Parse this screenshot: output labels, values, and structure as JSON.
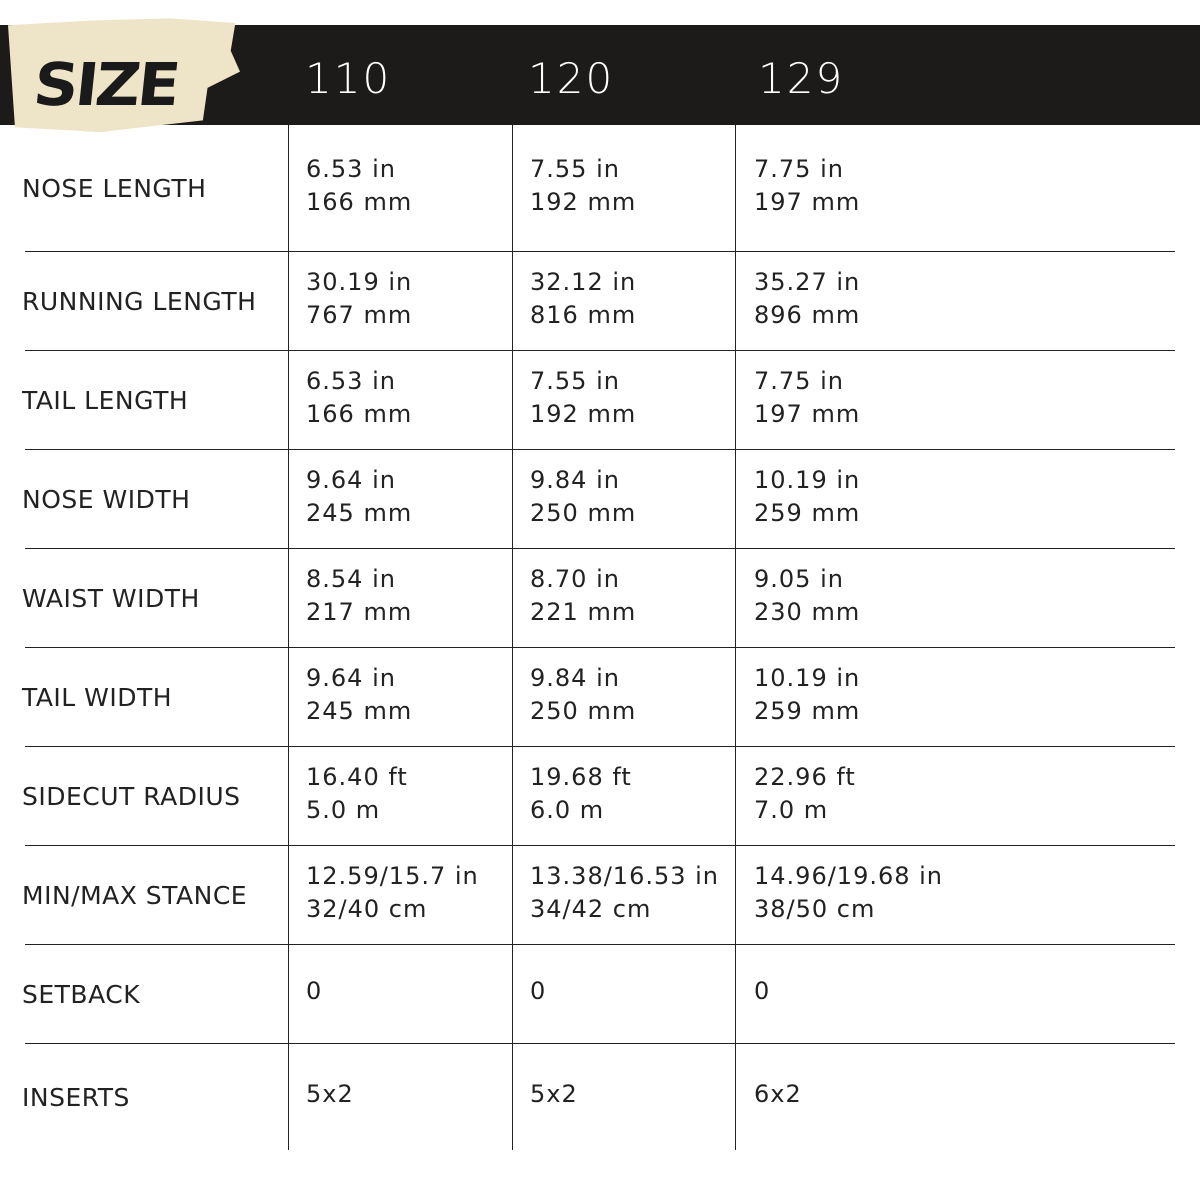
{
  "header": {
    "logo_text": "SIZE",
    "sizes": [
      "110",
      "120",
      "129"
    ]
  },
  "rows": [
    {
      "label": "NOSE LENGTH",
      "values": [
        [
          "6.53 in",
          "166 mm"
        ],
        [
          "7.55 in",
          "192 mm"
        ],
        [
          "7.75 in",
          "197  mm"
        ]
      ]
    },
    {
      "label": "RUNNING LENGTH",
      "values": [
        [
          "30.19 in",
          "767 mm"
        ],
        [
          "32.12 in",
          "816 mm"
        ],
        [
          "35.27 in",
          "896 mm"
        ]
      ]
    },
    {
      "label": "TAIL LENGTH",
      "values": [
        [
          "6.53 in",
          "166 mm"
        ],
        [
          "7.55 in",
          "192 mm"
        ],
        [
          "7.75 in",
          "197 mm"
        ]
      ]
    },
    {
      "label": "NOSE WIDTH",
      "values": [
        [
          "9.64 in",
          "245 mm"
        ],
        [
          "9.84 in",
          "250 mm"
        ],
        [
          "10.19 in",
          "259 mm"
        ]
      ]
    },
    {
      "label": "WAIST WIDTH",
      "values": [
        [
          "8.54 in",
          "217 mm"
        ],
        [
          "8.70 in",
          "221 mm"
        ],
        [
          "9.05 in",
          "230 mm"
        ]
      ]
    },
    {
      "label": "TAIL WIDTH",
      "values": [
        [
          "9.64 in",
          "245 mm"
        ],
        [
          "9.84 in",
          "250 mm"
        ],
        [
          "10.19 in",
          "259 mm"
        ]
      ]
    },
    {
      "label": "SIDECUT RADIUS",
      "values": [
        [
          "16.40 ft",
          "5.0 m"
        ],
        [
          "19.68 ft",
          "6.0 m"
        ],
        [
          "22.96 ft",
          "7.0 m"
        ]
      ]
    },
    {
      "label": "MIN/MAX STANCE",
      "values": [
        [
          "12.59/15.7 in",
          "32/40 cm"
        ],
        [
          "13.38/16.53 in",
          "34/42 cm"
        ],
        [
          "14.96/19.68 in",
          "38/50 cm"
        ]
      ]
    },
    {
      "label": "SETBACK",
      "values": [
        [
          "0"
        ],
        [
          "0"
        ],
        [
          "0"
        ]
      ]
    },
    {
      "label": "INSERTS",
      "values": [
        [
          "5x2"
        ],
        [
          "5x2"
        ],
        [
          "6x2"
        ]
      ]
    }
  ]
}
